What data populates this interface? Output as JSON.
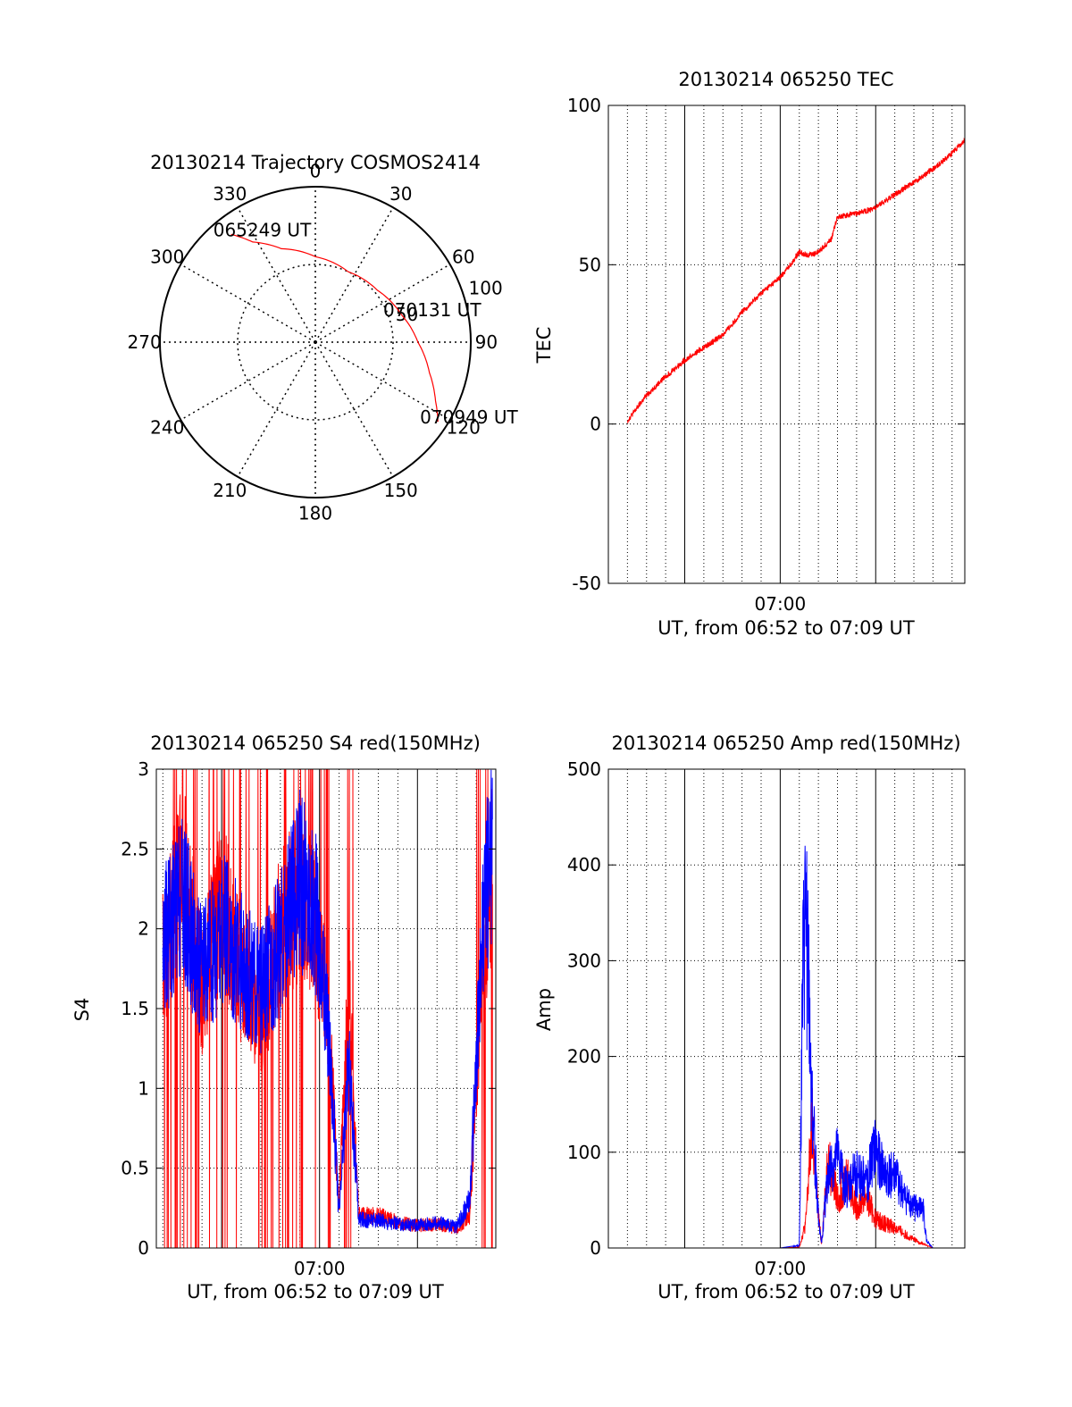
{
  "chart_data": [
    {
      "id": "trajectory",
      "type": "polar",
      "title": "20130214 Trajectory COSMOS2414",
      "azimuth_labels": [
        "0",
        "30",
        "60",
        "90",
        "120",
        "150",
        "180",
        "210",
        "240",
        "270",
        "300",
        "330"
      ],
      "radial_tick_labels": [
        "50",
        "100"
      ],
      "rlim": [
        0,
        100
      ],
      "grid": true,
      "series": [
        {
          "color": "#ff0000",
          "points": [
            {
              "az": 322,
              "r": 88
            },
            {
              "az": 328,
              "r": 76
            },
            {
              "az": 340,
              "r": 64
            },
            {
              "az": 0,
              "r": 55
            },
            {
              "az": 25,
              "r": 50
            },
            {
              "az": 50,
              "r": 52
            },
            {
              "az": 72,
              "r": 58
            },
            {
              "az": 90,
              "r": 66
            },
            {
              "az": 105,
              "r": 76
            },
            {
              "az": 116,
              "r": 86
            },
            {
              "az": 123,
              "r": 94
            }
          ]
        }
      ],
      "annotations": [
        {
          "text": "065249 UT",
          "az": 322,
          "r": 88
        },
        {
          "text": "070131 UT",
          "az": 72,
          "r": 58
        },
        {
          "text": "070949 UT",
          "az": 123,
          "r": 94
        }
      ]
    },
    {
      "id": "tec",
      "type": "line",
      "title": "20130214 065250 TEC",
      "xlabel": "UT, from 06:52 to 07:09 UT",
      "ylabel": "TEC",
      "xlim": [
        "06:51:00",
        "07:09:40"
      ],
      "ylim": [
        -50,
        100
      ],
      "yticks": [
        "-50",
        "0",
        "50",
        "100"
      ],
      "xtick_labels": [
        {
          "time": "07:00:00",
          "label": "07:00"
        }
      ],
      "grid": true,
      "series": [
        {
          "color": "#ff0000",
          "x": [
            "06:52:00",
            "06:53:00",
            "06:54:00",
            "06:55:00",
            "06:56:00",
            "06:57:00",
            "06:58:00",
            "06:59:00",
            "07:00:00",
            "07:00:40",
            "07:01:00",
            "07:01:30",
            "07:02:00",
            "07:02:40",
            "07:03:00",
            "07:04:00",
            "07:05:00",
            "07:06:00",
            "07:07:00",
            "07:08:00",
            "07:09:00",
            "07:09:40"
          ],
          "y": [
            1,
            9,
            15,
            20,
            24,
            28,
            35,
            41,
            46,
            51,
            54,
            53,
            54,
            58,
            65,
            66,
            68,
            72,
            76,
            80,
            85,
            89
          ]
        }
      ]
    },
    {
      "id": "s4",
      "type": "line",
      "title": "20130214 065250 S4 red(150MHz)",
      "xlabel": "UT, from 06:52 to 07:09 UT",
      "ylabel": "S4",
      "xlim": [
        "06:51:40",
        "07:09:00"
      ],
      "ylim": [
        0,
        3
      ],
      "yticks": [
        "0",
        "0.5",
        "1",
        "1.5",
        "2",
        "2.5",
        "3"
      ],
      "xtick_labels": [
        {
          "time": "07:00:00",
          "label": "07:00"
        }
      ],
      "grid": true,
      "series": [
        {
          "color": "#ff0000",
          "x": [
            "06:52:00",
            "06:53:00",
            "06:54:00",
            "06:55:00",
            "06:56:00",
            "06:57:00",
            "06:58:00",
            "06:59:00",
            "06:59:50",
            "07:00:30",
            "07:01:00",
            "07:01:30",
            "07:02:00",
            "07:03:00",
            "07:04:00",
            "07:05:00",
            "07:06:00",
            "07:07:00",
            "07:07:40",
            "07:08:20",
            "07:08:50"
          ],
          "y": [
            1.8,
            2.4,
            1.6,
            2.2,
            1.7,
            1.4,
            2.0,
            2.2,
            2.0,
            1.4,
            0.25,
            1.7,
            0.2,
            0.2,
            0.16,
            0.14,
            0.15,
            0.12,
            0.2,
            1.8,
            2.4
          ]
        },
        {
          "color": "#0000ff",
          "x": [
            "06:52:00",
            "06:53:00",
            "06:54:00",
            "06:55:00",
            "06:56:00",
            "06:57:00",
            "06:58:00",
            "06:59:00",
            "06:59:50",
            "07:00:30",
            "07:01:00",
            "07:01:30",
            "07:02:00",
            "07:03:00",
            "07:04:00",
            "07:05:00",
            "07:06:00",
            "07:07:00",
            "07:07:40",
            "07:08:20",
            "07:08:50"
          ],
          "y": [
            1.9,
            2.2,
            1.7,
            2.0,
            1.8,
            1.6,
            1.9,
            2.3,
            2.1,
            1.3,
            0.2,
            1.2,
            0.18,
            0.17,
            0.15,
            0.14,
            0.16,
            0.13,
            0.3,
            2.0,
            2.6
          ]
        }
      ]
    },
    {
      "id": "amp",
      "type": "line",
      "title": "20130214 065250 Amp red(150MHz)",
      "xlabel": "UT, from 06:52 to 07:09 UT",
      "ylabel": "Amp",
      "xlim": [
        "06:51:00",
        "07:09:40"
      ],
      "ylim": [
        0,
        500
      ],
      "yticks": [
        "0",
        "100",
        "200",
        "300",
        "400",
        "500"
      ],
      "xtick_labels": [
        {
          "time": "07:00:00",
          "label": "07:00"
        }
      ],
      "grid": true,
      "series": [
        {
          "color": "#ff0000",
          "x": [
            "06:52:00",
            "06:55:00",
            "07:00:00",
            "07:01:00",
            "07:01:20",
            "07:01:40",
            "07:02:00",
            "07:02:10",
            "07:02:30",
            "07:03:00",
            "07:03:30",
            "07:04:00",
            "07:04:30",
            "07:05:00",
            "07:06:00",
            "07:07:00",
            "07:07:40",
            "07:08:00",
            "07:09:40"
          ],
          "y": [
            0,
            0,
            0,
            1,
            30,
            150,
            40,
            5,
            110,
            60,
            90,
            50,
            65,
            35,
            25,
            10,
            3,
            0,
            0
          ]
        },
        {
          "color": "#0000ff",
          "x": [
            "06:52:00",
            "06:55:00",
            "07:00:00",
            "07:01:00",
            "07:01:10",
            "07:01:20",
            "07:01:40",
            "07:02:00",
            "07:02:10",
            "07:02:30",
            "07:03:00",
            "07:03:30",
            "07:04:00",
            "07:04:30",
            "07:05:00",
            "07:05:30",
            "07:06:00",
            "07:06:30",
            "07:07:00",
            "07:07:30",
            "07:07:40",
            "07:08:00",
            "07:09:40"
          ],
          "y": [
            0,
            0,
            0,
            3,
            300,
            420,
            180,
            40,
            5,
            90,
            110,
            70,
            95,
            80,
            120,
            85,
            90,
            60,
            50,
            45,
            8,
            0,
            0
          ]
        }
      ]
    }
  ]
}
